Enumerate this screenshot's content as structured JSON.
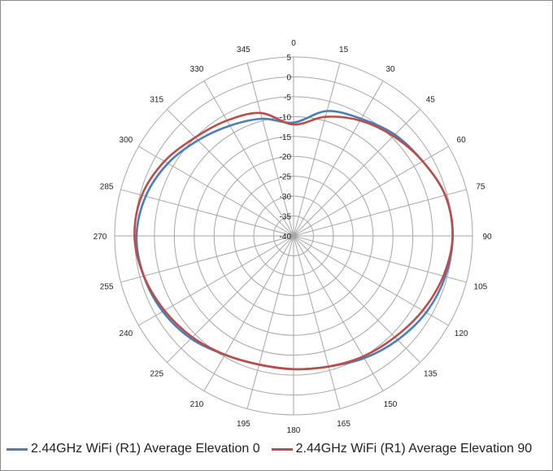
{
  "chart_data": {
    "type": "polar-line",
    "title": "",
    "angle_ticks": [
      "0",
      "15",
      "30",
      "45",
      "60",
      "75",
      "90",
      "105",
      "120",
      "135",
      "150",
      "165",
      "180",
      "195",
      "210",
      "225",
      "240",
      "255",
      "270",
      "285",
      "300",
      "315",
      "330",
      "345"
    ],
    "radial_ticks": [
      "5",
      "0",
      "-5",
      "-10",
      "-15",
      "-20",
      "-25",
      "-30",
      "-35",
      "-40"
    ],
    "rlim": [
      -40,
      5
    ],
    "legend_position": "bottom",
    "series": [
      {
        "name": "2.44GHz WiFi (R1) Average Elevation 0",
        "color": "#4a7ebb",
        "theta": [
          0,
          15,
          30,
          45,
          60,
          75,
          90,
          105,
          120,
          135,
          150,
          165,
          180,
          195,
          210,
          225,
          240,
          255,
          270,
          285,
          300,
          315,
          330,
          345,
          360
        ],
        "r": [
          -11.5,
          -7.5,
          -6.0,
          -4.0,
          -2.5,
          -0.5,
          0.0,
          -0.5,
          -1.5,
          -3.0,
          -4.5,
          -6.0,
          -6.5,
          -6.5,
          -5.5,
          -3.5,
          -2.0,
          -1.0,
          -0.5,
          -1.5,
          -3.5,
          -6.0,
          -8.0,
          -9.5,
          -11.5
        ]
      },
      {
        "name": "2.44GHz WiFi (R1) Average Elevation 90",
        "color": "#be4b48",
        "theta": [
          0,
          15,
          30,
          45,
          60,
          75,
          90,
          105,
          120,
          135,
          150,
          165,
          180,
          195,
          210,
          225,
          240,
          255,
          270,
          285,
          300,
          315,
          330,
          345,
          360
        ],
        "r": [
          -12.0,
          -9.0,
          -6.5,
          -4.5,
          -2.5,
          -0.5,
          0.0,
          -1.0,
          -2.5,
          -4.0,
          -5.0,
          -6.0,
          -6.5,
          -6.5,
          -5.5,
          -4.0,
          -2.5,
          -1.0,
          0.0,
          -0.5,
          -2.5,
          -5.0,
          -6.5,
          -8.0,
          -12.0
        ]
      }
    ]
  }
}
